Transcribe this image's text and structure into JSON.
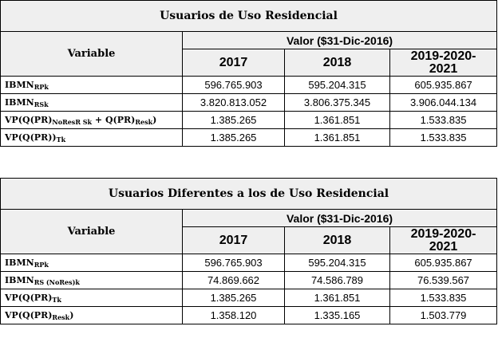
{
  "tables": [
    {
      "title": "Usuarios de Uso Residencial",
      "variable_header": "Variable",
      "value_header": "Valor ($31-Dic-2016)",
      "years": [
        "2017",
        "2018",
        "2019-2020-2021"
      ],
      "rows": [
        {
          "label_main": "IBMN",
          "label_sub": "RPk",
          "label_tail": "",
          "values": [
            "596.765.903",
            "595.204.315",
            "605.935.867"
          ]
        },
        {
          "label_main": "IBMN",
          "label_sub": "RSk",
          "label_tail": "",
          "values": [
            "3.820.813.052",
            "3.806.375.345",
            "3.906.044.134"
          ]
        },
        {
          "label_main": "VP(Q(PR)",
          "label_sub": "NoResR Sk",
          "label_tail": " + Q(PR)",
          "label_sub2": "Resk",
          "label_end": ")",
          "values": [
            "1.385.265",
            "1.361.851",
            "1.533.835"
          ]
        },
        {
          "label_main": "VP(Q(PR))",
          "label_sub": "Tk",
          "label_tail": "",
          "values": [
            "1.385.265",
            "1.361.851",
            "1.533.835"
          ]
        }
      ]
    },
    {
      "title": "Usuarios Diferentes a los de Uso Residencial",
      "variable_header": "Variable",
      "value_header": "Valor ($31-Dic-2016)",
      "years": [
        "2017",
        "2018",
        "2019-2020-2021"
      ],
      "rows": [
        {
          "label_main": "IBMN",
          "label_sub": "RPk",
          "label_tail": "",
          "values": [
            "596.765.903",
            "595.204.315",
            "605.935.867"
          ]
        },
        {
          "label_main": "IBMN",
          "label_sub": "RS (NoRes)k",
          "label_tail": "",
          "values": [
            "74.869.662",
            "74.586.789",
            "76.539.567"
          ]
        },
        {
          "label_main": "VP(Q(PR)",
          "label_sub": "Tk",
          "label_tail": "",
          "values": [
            "1.385.265",
            "1.361.851",
            "1.533.835"
          ]
        },
        {
          "label_main": "VP(Q(PR)",
          "label_sub": "Resk",
          "label_tail": ")",
          "values": [
            "1.358.120",
            "1.335.165",
            "1.503.779"
          ]
        }
      ]
    }
  ]
}
